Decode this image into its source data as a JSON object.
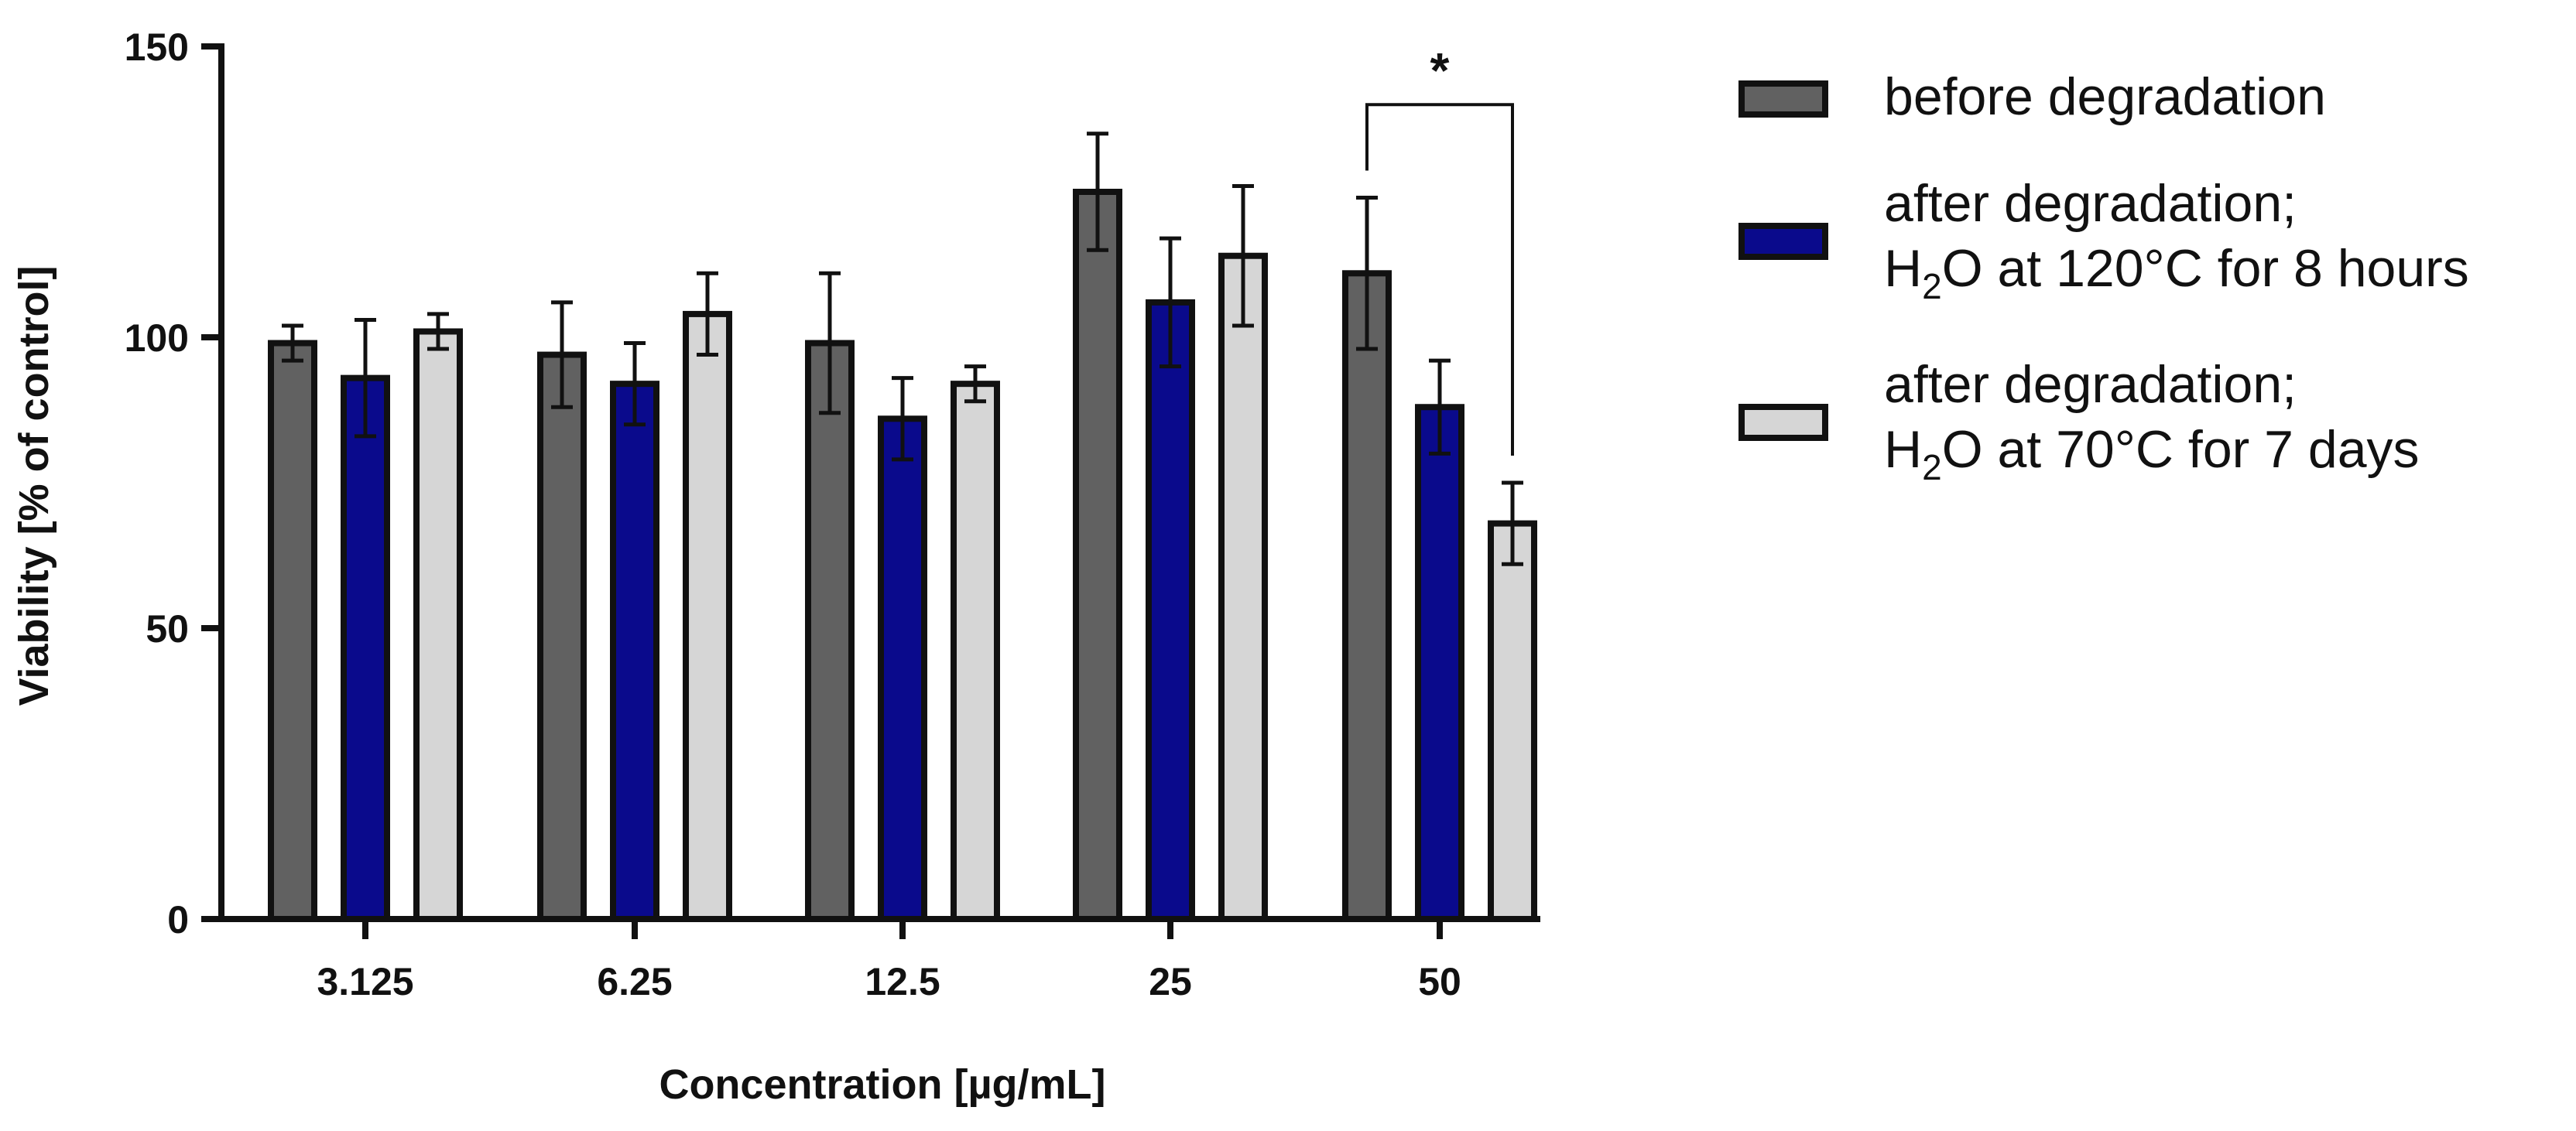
{
  "chart_data": {
    "type": "bar",
    "title": "",
    "xlabel": "Concentration [µg/mL]",
    "ylabel": "Viability [% of control]",
    "ylim": [
      0,
      150
    ],
    "yticks": [
      0,
      50,
      100,
      150
    ],
    "categories": [
      "3.125",
      "6.25",
      "12.5",
      "25",
      "50"
    ],
    "series": [
      {
        "name": "before degradation",
        "color": "#616161",
        "values": [
          99,
          97,
          99,
          125,
          111
        ],
        "errors": [
          3,
          9,
          12,
          10,
          13
        ]
      },
      {
        "name": "after degradation; H2O at 120°C for 8 hours",
        "legend_line1": "after degradation;",
        "legend_line2_prefix": "H",
        "legend_line2_sub": "2",
        "legend_line2_suffix": "O at 120°C for 8 hours",
        "color": "#0a0a8c",
        "values": [
          93,
          92,
          86,
          106,
          88
        ],
        "errors": [
          10,
          7,
          7,
          11,
          8
        ]
      },
      {
        "name": "after degradation; H2O at 70°C for 7 days",
        "legend_line1": "after degradation;",
        "legend_line2_prefix": "H",
        "legend_line2_sub": "2",
        "legend_line2_suffix": "O at 70°C for 7 days",
        "color": "#d6d6d6",
        "values": [
          101,
          104,
          92,
          114,
          68
        ],
        "errors": [
          3,
          7,
          3,
          12,
          7
        ]
      }
    ],
    "annotations": [
      {
        "text": "*",
        "category": "50",
        "from_series": 0,
        "to_series": 2,
        "bracket_y": 140
      }
    ],
    "legend": "right"
  }
}
